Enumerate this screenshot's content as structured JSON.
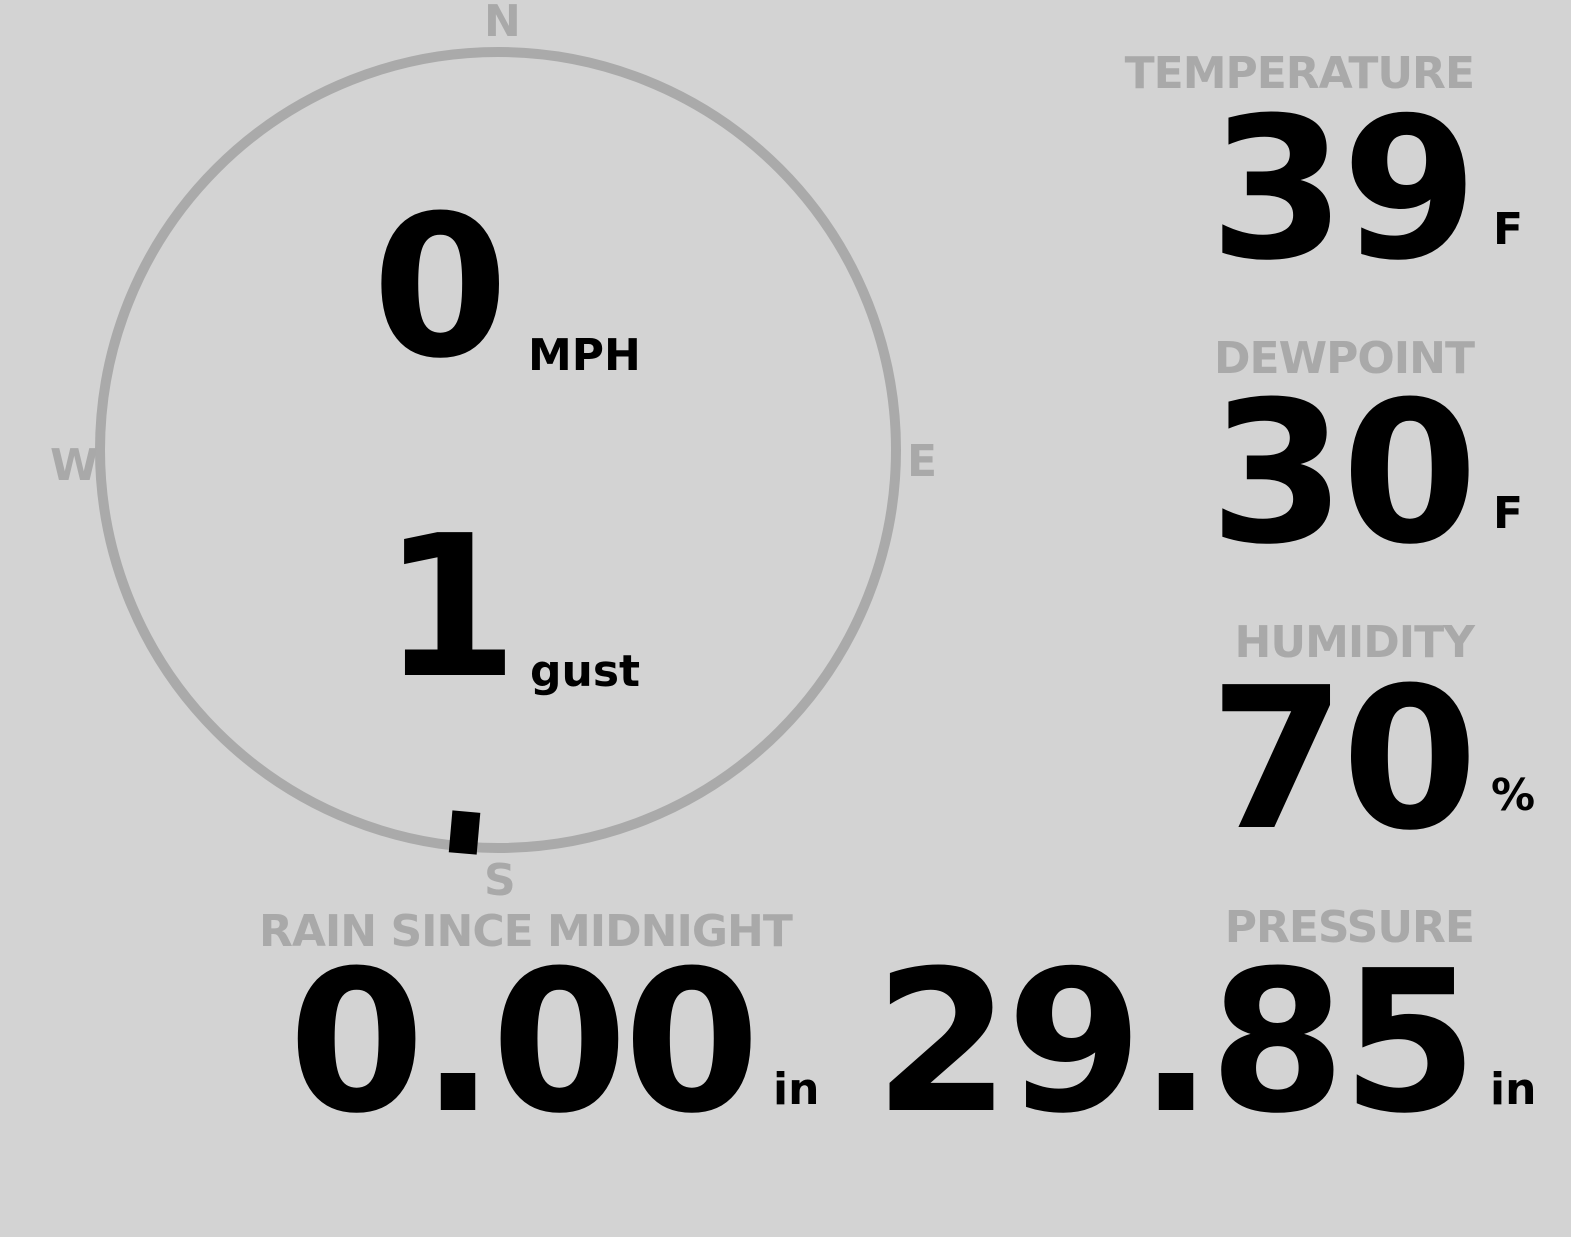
{
  "wind": {
    "speed": "0",
    "speed_unit": "MPH",
    "gust": "1",
    "gust_unit": "gust",
    "direction_deg": 185,
    "cardinals": {
      "n": "N",
      "e": "E",
      "s": "S",
      "w": "W"
    }
  },
  "temperature": {
    "label": "TEMPERATURE",
    "value": "39",
    "unit": "F"
  },
  "dewpoint": {
    "label": "DEWPOINT",
    "value": "30",
    "unit": "F"
  },
  "humidity": {
    "label": "HUMIDITY",
    "value": "70",
    "unit": "%"
  },
  "rain": {
    "label": "RAIN SINCE MIDNIGHT",
    "value": "0.00",
    "unit": "in"
  },
  "pressure": {
    "label": "PRESSURE",
    "value": "29.85",
    "unit": "in"
  },
  "colors": {
    "background": "#d3d3d3",
    "label": "#a9a9a9",
    "value": "#000000",
    "ring": "#aaaaaa"
  }
}
